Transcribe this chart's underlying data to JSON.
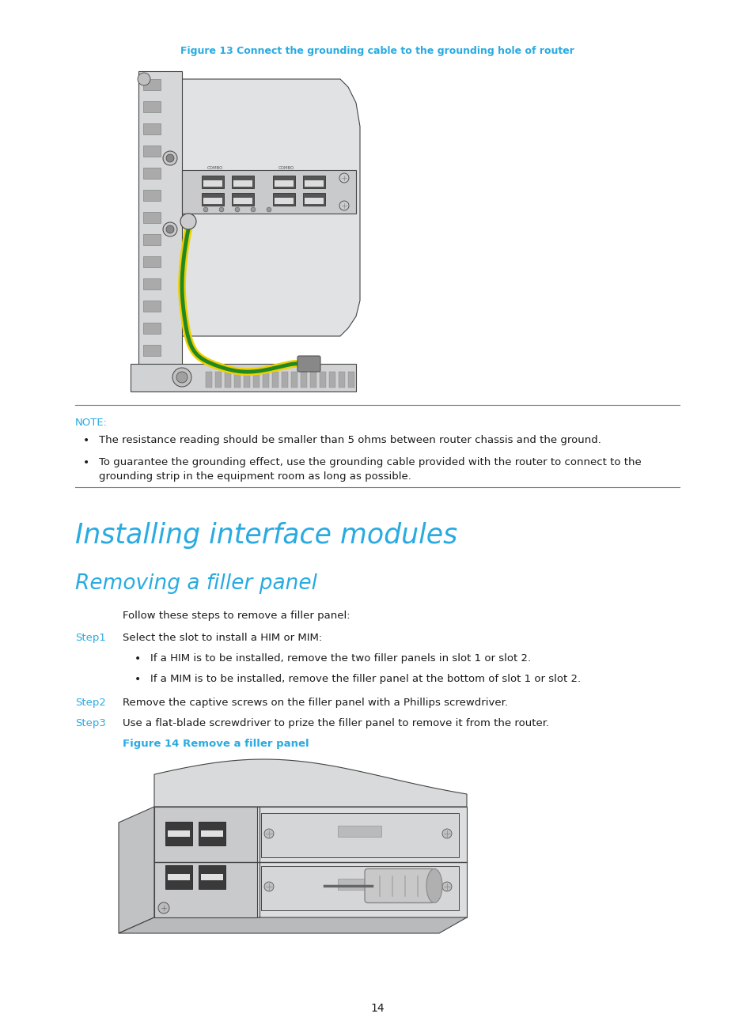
{
  "page_number": "14",
  "bg_color": "#ffffff",
  "cyan_color": "#29abe2",
  "black_color": "#1a1a1a",
  "figure13_caption": "Figure 13 Connect the grounding cable to the grounding hole of router",
  "note_label": "NOTE:",
  "note_bullet1": "The resistance reading should be smaller than 5 ohms between router chassis and the ground.",
  "note_bullet2_line1": "To guarantee the grounding effect, use the grounding cable provided with the router to connect to the",
  "note_bullet2_line2": "grounding strip in the equipment room as long as possible.",
  "section_title": "Installing interface modules",
  "subsection_title": "Removing a filler panel",
  "intro_text": "Follow these steps to remove a filler panel:",
  "step1_label": "Step1",
  "step1_text": "Select the slot to install a HIM or MIM:",
  "step1_bullet1": "If a HIM is to be installed, remove the two filler panels in slot 1 or slot 2.",
  "step1_bullet2": "If a MIM is to be installed, remove the filler panel at the bottom of slot 1 or slot 2.",
  "step2_label": "Step2",
  "step2_text": "Remove the captive screws on the filler panel with a Phillips screwdriver.",
  "step3_label": "Step3",
  "step3_text": "Use a flat-blade screwdriver to prize the filler panel to remove it from the router.",
  "figure14_caption": "Figure 14 Remove a filler panel"
}
